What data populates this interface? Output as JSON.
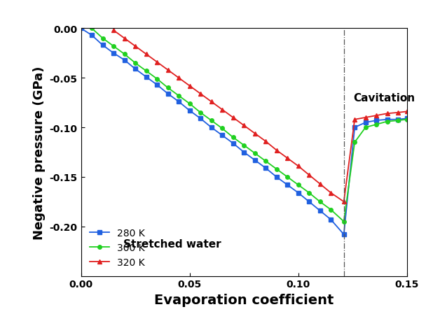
{
  "chart_data": {
    "type": "line",
    "x_label": "Evaporation coefficient",
    "y_label": "Negative pressure (GPa)",
    "x": [
      0.0,
      0.005,
      0.01,
      0.015,
      0.02,
      0.025,
      0.03,
      0.035,
      0.04,
      0.045,
      0.05,
      0.055,
      0.06,
      0.065,
      0.07,
      0.075,
      0.08,
      0.085,
      0.09,
      0.095,
      0.1,
      0.105,
      0.11,
      0.115,
      0.121,
      0.126,
      0.131,
      0.136,
      0.141,
      0.146,
      0.15
    ],
    "series": [
      {
        "name": "280 K",
        "color": "#2060e0",
        "marker": "square",
        "line_style": "solid",
        "values": [
          0.0,
          -0.007,
          -0.017,
          -0.025,
          -0.032,
          -0.041,
          -0.049,
          -0.057,
          -0.066,
          -0.074,
          -0.083,
          -0.091,
          -0.1,
          -0.108,
          -0.116,
          -0.125,
          -0.133,
          -0.141,
          -0.15,
          -0.158,
          -0.166,
          -0.175,
          -0.184,
          -0.193,
          -0.208,
          -0.1,
          -0.095,
          -0.093,
          -0.092,
          -0.092,
          -0.091
        ]
      },
      {
        "name": "300 K",
        "color": "#20d020",
        "marker": "circle",
        "line_style": "solid",
        "values": [
          null,
          0.0,
          -0.01,
          -0.018,
          -0.026,
          -0.035,
          -0.043,
          -0.051,
          -0.06,
          -0.068,
          -0.076,
          -0.085,
          -0.093,
          -0.101,
          -0.11,
          -0.118,
          -0.126,
          -0.134,
          -0.142,
          -0.15,
          -0.158,
          -0.166,
          -0.175,
          -0.183,
          -0.195,
          -0.115,
          -0.1,
          -0.097,
          -0.094,
          -0.093,
          -0.092
        ]
      },
      {
        "name": "320 K",
        "color": "#e02020",
        "marker": "triangle",
        "line_style": "solid",
        "values": [
          null,
          null,
          null,
          -0.002,
          -0.01,
          -0.018,
          -0.026,
          -0.034,
          -0.042,
          -0.05,
          -0.058,
          -0.066,
          -0.074,
          -0.082,
          -0.09,
          -0.098,
          -0.106,
          -0.114,
          -0.123,
          -0.131,
          -0.139,
          -0.148,
          -0.157,
          -0.166,
          -0.175,
          -0.092,
          -0.09,
          -0.088,
          -0.086,
          -0.085,
          -0.084
        ]
      }
    ],
    "cavitation_x": 0.121,
    "annotations": [
      "Stretched water",
      "Cavitation"
    ],
    "xlim": [
      0.0,
      0.15
    ],
    "xticks": [
      {
        "value": 0.0,
        "label": "0.00"
      },
      {
        "value": 0.05,
        "label": "0.05"
      },
      {
        "value": 0.1,
        "label": "0.10"
      },
      {
        "value": 0.15,
        "label": "0.15"
      }
    ],
    "ylim": [
      -0.25,
      0.0
    ],
    "yticks": [
      {
        "value": 0.0,
        "label": "0.00"
      },
      {
        "value": -0.05,
        "label": "-0.05"
      },
      {
        "value": -0.1,
        "label": "-0.10"
      },
      {
        "value": -0.15,
        "label": "-0.15"
      },
      {
        "value": -0.2,
        "label": "-0.20"
      }
    ],
    "grid": false,
    "legend": "lower left"
  }
}
